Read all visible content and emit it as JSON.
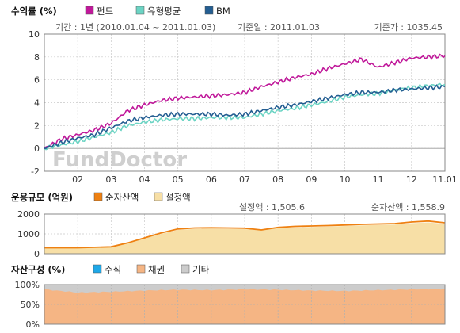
{
  "chart_data": [
    {
      "type": "line",
      "title": "수익률 (%)",
      "legend": [
        "펀드",
        "유형평균",
        "BM"
      ],
      "period": "기간 : 1년 (2010.01.04 ~ 2011.01.03)",
      "base_date": "기준일 : 2011.01.03",
      "base_price": "기준가 : 1035.45",
      "watermark": "FundDoctor",
      "x_ticks": [
        "02",
        "03",
        "04",
        "05",
        "06",
        "07",
        "08",
        "09",
        "10",
        "11",
        "12",
        "11.01"
      ],
      "y_ticks": [
        "10",
        "8",
        "6",
        "4",
        "2",
        "0",
        "-2"
      ],
      "ylim": [
        -2,
        10
      ],
      "x": [
        1,
        1.5,
        2,
        2.5,
        3,
        3.5,
        4,
        4.5,
        5,
        5.5,
        6,
        6.5,
        7,
        7.5,
        8,
        8.5,
        9,
        9.5,
        10,
        10.5,
        11,
        11.5,
        12,
        12.5,
        13
      ],
      "series": [
        {
          "name": "펀드",
          "color": "#c0189a",
          "values": [
            0.0,
            0.8,
            1.2,
            1.6,
            2.2,
            3.3,
            3.8,
            4.2,
            4.4,
            4.5,
            4.6,
            4.7,
            4.9,
            5.4,
            5.8,
            6.2,
            6.5,
            7.0,
            7.4,
            7.8,
            7.1,
            7.5,
            7.9,
            8.0,
            8.1
          ]
        },
        {
          "name": "유형평균",
          "color": "#6cd4c4",
          "values": [
            0.0,
            0.3,
            0.6,
            1.0,
            1.4,
            2.0,
            2.3,
            2.5,
            2.6,
            2.6,
            2.7,
            2.7,
            2.7,
            3.0,
            3.3,
            3.5,
            3.8,
            4.1,
            4.5,
            4.7,
            4.8,
            5.1,
            5.3,
            5.5,
            5.6
          ]
        },
        {
          "name": "BM",
          "color": "#245e92",
          "values": [
            0.0,
            0.5,
            0.9,
            1.2,
            1.8,
            2.4,
            2.7,
            2.9,
            3.0,
            3.0,
            3.0,
            2.9,
            3.0,
            3.3,
            3.6,
            3.8,
            4.1,
            4.4,
            4.7,
            4.9,
            4.9,
            5.1,
            5.2,
            5.3,
            5.4
          ]
        }
      ]
    },
    {
      "type": "area",
      "title": "운용규모 (억원)",
      "legend": [
        "순자산액",
        "설정액"
      ],
      "set_amount": "설정액 : 1,505.6",
      "net_asset": "순자산액 : 1,558.9",
      "y_ticks": [
        "2000",
        "1000",
        "0"
      ],
      "ylim": [
        0,
        2000
      ],
      "x": [
        1,
        2,
        3,
        3.5,
        4,
        4.5,
        5,
        5.5,
        6,
        6.5,
        7,
        7.5,
        8,
        8.5,
        9,
        9.5,
        10,
        10.5,
        11,
        11.5,
        12,
        12.5,
        13
      ],
      "series": [
        {
          "name": "순자산액",
          "color": "#ee8011",
          "values": [
            300,
            300,
            350,
            550,
            800,
            1050,
            1250,
            1300,
            1310,
            1300,
            1290,
            1200,
            1330,
            1380,
            1400,
            1420,
            1450,
            1480,
            1500,
            1520,
            1600,
            1650,
            1560
          ]
        },
        {
          "name": "설정액",
          "color": "#f7dfa6",
          "values": [
            300,
            300,
            350,
            550,
            780,
            1000,
            1200,
            1250,
            1260,
            1250,
            1240,
            1180,
            1290,
            1330,
            1350,
            1370,
            1400,
            1430,
            1450,
            1470,
            1540,
            1580,
            1505
          ]
        }
      ]
    },
    {
      "type": "area",
      "title": "자산구성 (%)",
      "legend": [
        "주식",
        "채권",
        "기타"
      ],
      "y_ticks": [
        "100%",
        "50%",
        "0%"
      ],
      "ylim": [
        0,
        100
      ],
      "x": [
        1,
        2,
        3,
        4,
        5,
        6,
        7,
        8,
        9,
        10,
        11,
        12,
        13
      ],
      "series": [
        {
          "name": "주식",
          "color": "#1ea8e8",
          "values": [
            0,
            0,
            0,
            0,
            0,
            0,
            0,
            0,
            0,
            0,
            0,
            0,
            0
          ]
        },
        {
          "name": "채권",
          "color": "#f5b584",
          "values": [
            88,
            80,
            82,
            85,
            87,
            86,
            88,
            87,
            85,
            84,
            86,
            88,
            89
          ]
        },
        {
          "name": "기타",
          "color": "#cccccc",
          "values": [
            12,
            20,
            18,
            15,
            13,
            14,
            12,
            13,
            15,
            16,
            14,
            12,
            11
          ]
        }
      ]
    }
  ]
}
